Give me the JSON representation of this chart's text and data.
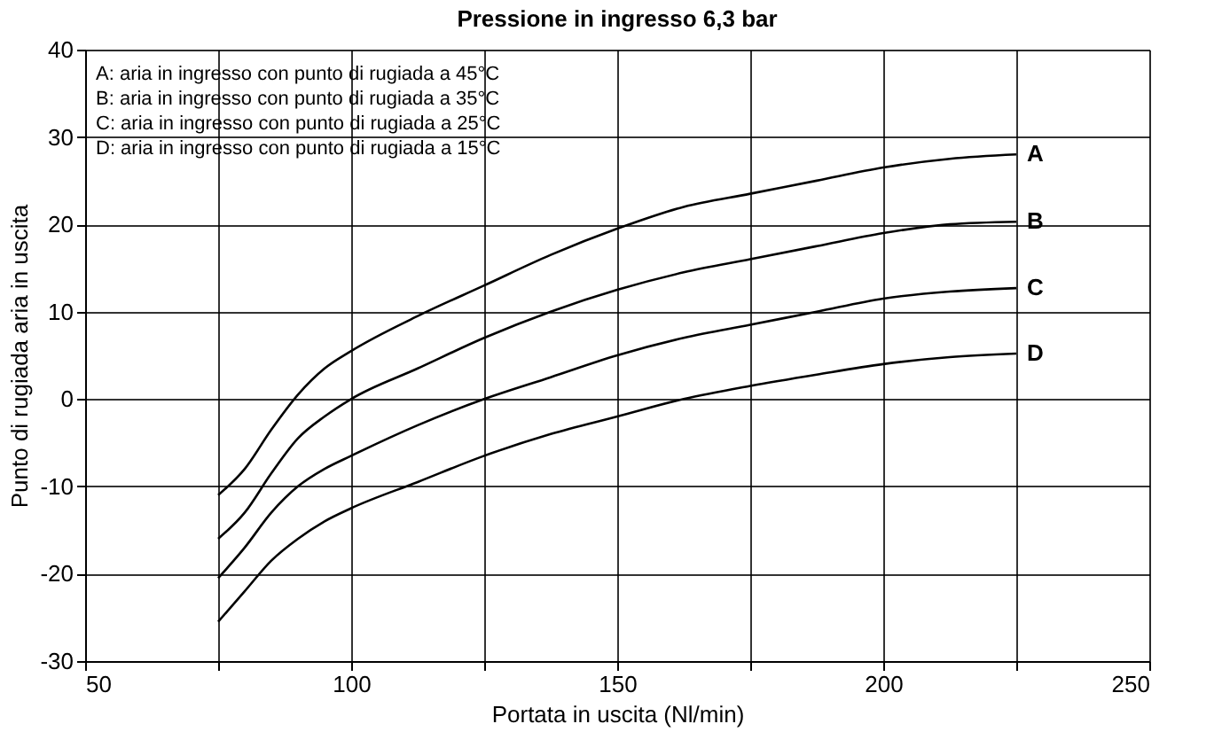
{
  "chart_data": {
    "type": "line",
    "title": "Pressione in ingresso 6,3 bar",
    "xlabel": "Portata in uscita (Nl/min)",
    "ylabel": "Punto di rugiada aria in uscita",
    "xlim": [
      50,
      250
    ],
    "xticks": [
      50,
      {
        "value": 75,
        "label": null
      },
      100,
      {
        "value": 125,
        "label": null
      },
      150,
      {
        "value": 175,
        "label": null
      },
      200,
      {
        "value": 225,
        "label": null
      },
      250
    ],
    "ylim": [
      -30,
      40
    ],
    "yticks": [
      -30,
      -20,
      -10,
      0,
      10,
      20,
      30,
      40
    ],
    "grid": true,
    "legend": false,
    "marker": "none",
    "line_style": "solid",
    "x": [
      75,
      80,
      85,
      90,
      95,
      100,
      112.5,
      125,
      137.5,
      150,
      162.5,
      175,
      187.5,
      200,
      212.5,
      225
    ],
    "series": [
      {
        "name": "A",
        "color": "#000000",
        "values": [
          -11,
          -8,
          -3.5,
          0.5,
          3.5,
          5.5,
          9.5,
          13,
          16.5,
          19.5,
          22,
          23.5,
          25,
          26.5,
          27.5,
          28
        ]
      },
      {
        "name": "B",
        "color": "#000000",
        "values": [
          -16,
          -13,
          -8.5,
          -4.5,
          -2,
          0,
          3.5,
          7,
          10,
          12.5,
          14.5,
          16,
          17.5,
          19,
          20,
          20.3
        ]
      },
      {
        "name": "C",
        "color": "#000000",
        "values": [
          -20.5,
          -17,
          -13,
          -10,
          -8,
          -6.5,
          -3,
          0,
          2.5,
          5,
          7,
          8.5,
          10,
          11.5,
          12.3,
          12.7
        ]
      },
      {
        "name": "D",
        "color": "#000000",
        "values": [
          -25.5,
          -22,
          -18.5,
          -16,
          -14,
          -12.5,
          -9.5,
          -6.5,
          -4,
          -2,
          0,
          1.5,
          2.8,
          4,
          4.8,
          5.2
        ]
      }
    ],
    "annotations": [
      "A: aria in ingresso con punto di rugiada a 45°C",
      "B: aria in ingresso con punto di rugiada a 35°C",
      "C: aria in ingresso con punto di rugiada a 25°C",
      "D: aria in ingresso con punto di rugiada a 15°C"
    ]
  }
}
